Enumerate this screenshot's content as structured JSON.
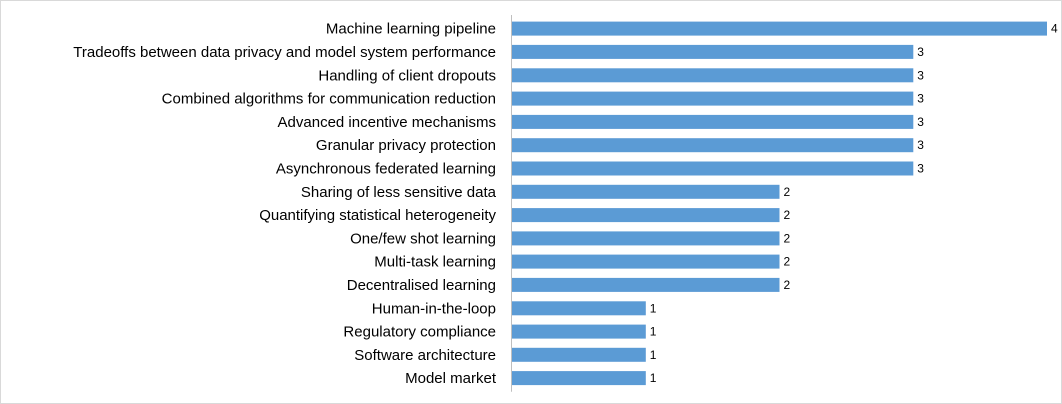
{
  "chart_data": {
    "type": "bar",
    "orientation": "horizontal",
    "title": "",
    "xlabel": "",
    "ylabel": "",
    "xlim": [
      0,
      4
    ],
    "grid": false,
    "legend": "none",
    "bar_color": "#5b9bd5",
    "categories": [
      "Machine learning pipeline",
      "Tradeoffs between data privacy and model system performance",
      "Handling of client dropouts",
      "Combined algorithms for communication reduction",
      "Advanced incentive mechanisms",
      "Granular privacy protection",
      "Asynchronous federated learning",
      "Sharing of less sensitive data",
      "Quantifying statistical heterogeneity",
      "One/few shot learning",
      "Multi-task learning",
      "Decentralised  learning",
      "Human-in-the-loop",
      "Regulatory compliance",
      "Software architecture",
      "Model market"
    ],
    "values": [
      4,
      3,
      3,
      3,
      3,
      3,
      3,
      2,
      2,
      2,
      2,
      2,
      1,
      1,
      1,
      1
    ]
  }
}
